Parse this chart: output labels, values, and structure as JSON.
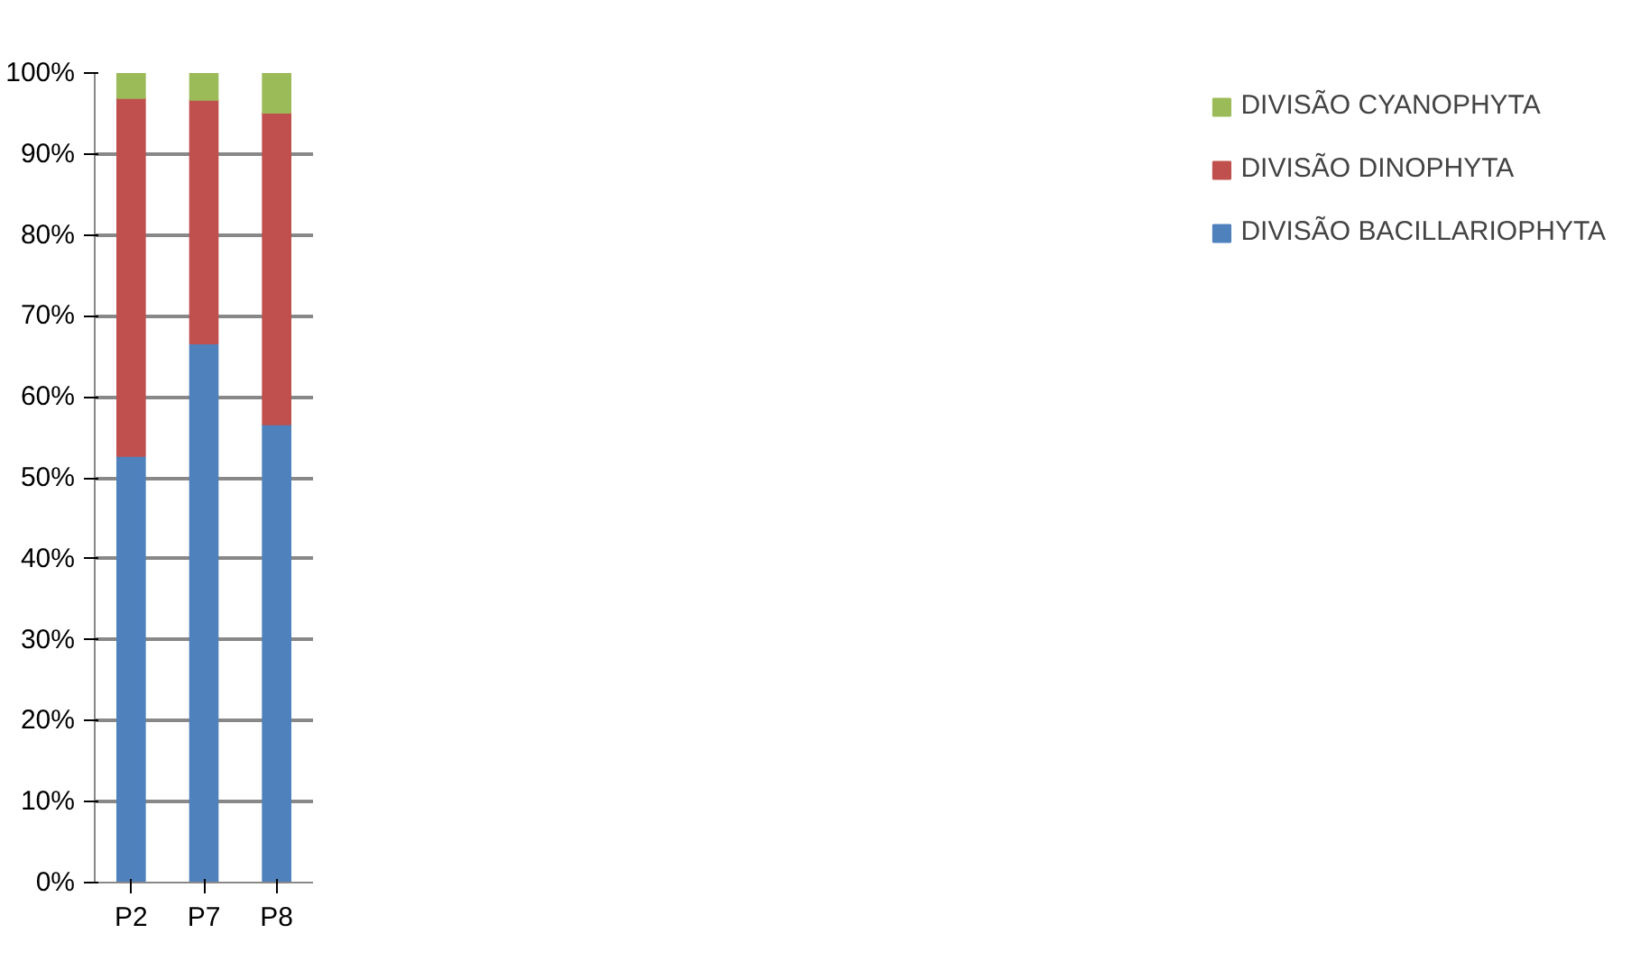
{
  "chart_data": {
    "type": "bar",
    "stacked": true,
    "categories": [
      "P2",
      "P7",
      "P8"
    ],
    "series": [
      {
        "name": "DIVISÃO BACILLARIOPHYTA",
        "color": "#4f81bd",
        "values": [
          52.7,
          66.6,
          56.6
        ]
      },
      {
        "name": "DIVISÃO DINOPHYTA",
        "color": "#c0504d",
        "values": [
          44.2,
          30.1,
          38.5
        ]
      },
      {
        "name": "DIVISÃO CYANOPHYTA",
        "color": "#9bbb59",
        "values": [
          3.1,
          3.3,
          4.9
        ]
      }
    ],
    "ylim": [
      0,
      100
    ],
    "yticks": [
      {
        "value": 0,
        "label": "0%"
      },
      {
        "value": 10,
        "label": "10%"
      },
      {
        "value": 20,
        "label": "20%"
      },
      {
        "value": 30,
        "label": "30%"
      },
      {
        "value": 40,
        "label": "40%"
      },
      {
        "value": 50,
        "label": "50%"
      },
      {
        "value": 60,
        "label": "60%"
      },
      {
        "value": 70,
        "label": "70%"
      },
      {
        "value": 80,
        "label": "80%"
      },
      {
        "value": 90,
        "label": "90%"
      },
      {
        "value": 100,
        "label": "100%"
      }
    ],
    "grid": "y",
    "legend": "right"
  }
}
